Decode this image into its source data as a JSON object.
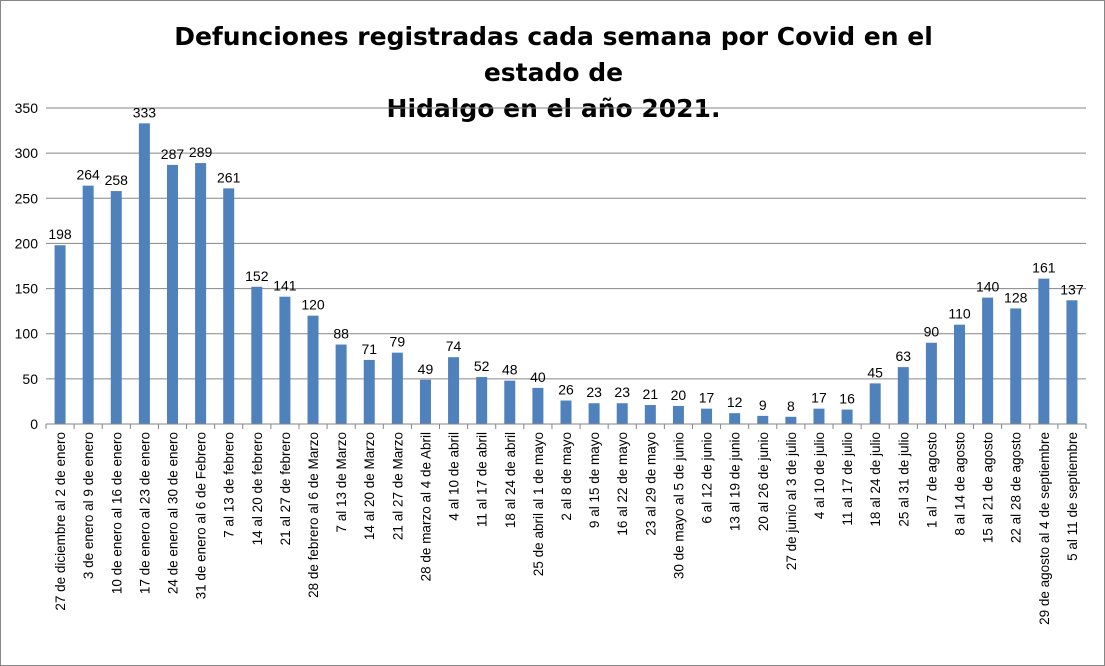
{
  "chart_data": {
    "type": "bar",
    "title_line1": "Defunciones registradas cada semana por Covid en el estado de",
    "title_line2": "Hidalgo en el año 2021.",
    "xlabel": "",
    "ylabel": "",
    "ylim": [
      0,
      350
    ],
    "yticks": [
      0,
      50,
      100,
      150,
      200,
      250,
      300,
      350
    ],
    "grid": true,
    "legend": "none",
    "bar_color": "#4F81BD",
    "categories": [
      "27 de diciembre al 2 de enero",
      "3 de enero al 9 de enero",
      "10 de enero al 16 de enero",
      "17 de enero al 23 de enero",
      "24 de enero al 30 de enero",
      "31 de enero al 6 de Febrero",
      "7 al 13 de febrero",
      "14 al 20 de febrero",
      "21 al 27 de febrero",
      "28 de febrero al  6 de Marzo",
      "7 al 13 de Marzo",
      "14 al 20 de Marzo",
      "21 al 27 de Marzo",
      "28 de marzo al 4 de Abril",
      "4 al 10 de abril",
      "11 al 17 de abril",
      "18 al 24 de abril",
      "25 de abril al 1 de mayo",
      "2 al 8 de mayo",
      "9 al 15 de mayo",
      "16 al 22 de mayo",
      "23 al 29 de mayo",
      "30 de mayo al 5 de junio",
      "6 al 12 de junio",
      "13 al 19 de junio",
      "20 al 26 de junio",
      "27 de junio al 3 de julio",
      "4 al 10 de julio",
      "11 al 17 de julio",
      "18 al 24 de julio",
      "25 al 31 de julio",
      "1 al 7 de agosto",
      "8 al 14 de agosto",
      "15 al 21 de agosto",
      "22 al 28 de agosto",
      "29 de agosto al 4 de septiembre",
      "5 al 11 de septiembre"
    ],
    "values": [
      198,
      264,
      258,
      333,
      287,
      289,
      261,
      152,
      141,
      120,
      88,
      71,
      79,
      49,
      74,
      52,
      48,
      40,
      26,
      23,
      23,
      21,
      20,
      17,
      12,
      9,
      8,
      17,
      16,
      45,
      63,
      90,
      110,
      140,
      128,
      161,
      137
    ]
  }
}
